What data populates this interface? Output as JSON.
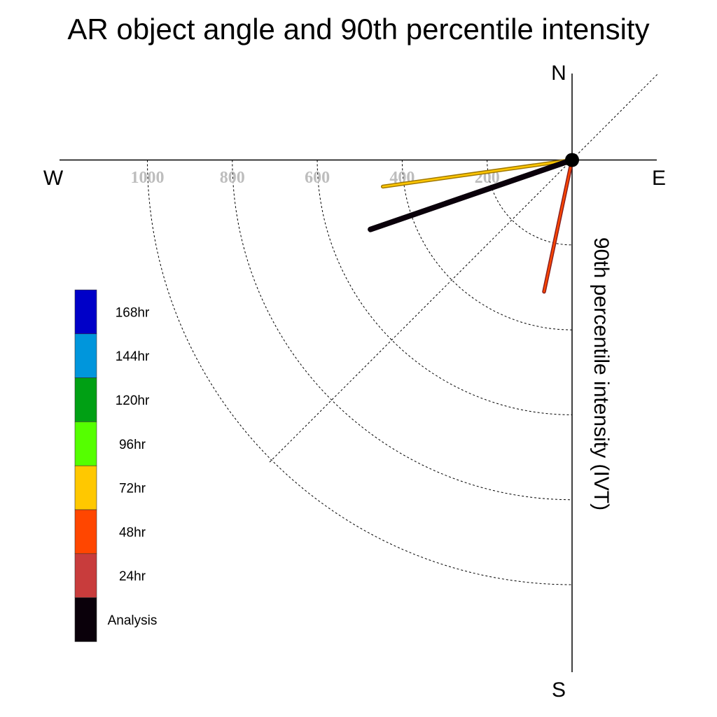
{
  "chart_data": {
    "type": "polar-vector",
    "title": "AR object angle and 90th percentile intensity",
    "ylabel": "90th percentile intensity (IVT)",
    "compass": {
      "north": "N",
      "south": "S",
      "east": "E",
      "west": "W"
    },
    "rings": [
      200,
      400,
      600,
      800,
      1000
    ],
    "ring_labels": [
      "1000",
      "800",
      "600",
      "400",
      "200"
    ],
    "rlim": [
      0,
      1000
    ],
    "quadrant": "south-west",
    "legend": {
      "placement": "left",
      "entries": [
        {
          "label": "168hr",
          "color": "#0000c8"
        },
        {
          "label": "144hr",
          "color": "#0096dc"
        },
        {
          "label": "120hr",
          "color": "#00a014"
        },
        {
          "label": "96hr",
          "color": "#55ff00"
        },
        {
          "label": "72hr",
          "color": "#ffc800"
        },
        {
          "label": "48hr",
          "color": "#ff4600"
        },
        {
          "label": "24hr",
          "color": "#c83c3c"
        },
        {
          "label": "Analysis",
          "color": "#0a000a"
        }
      ]
    },
    "series": [
      {
        "name": "72hr",
        "angle_deg_from_north": 262,
        "intensity": 450,
        "color": "#ffc800",
        "outline": "#a07800"
      },
      {
        "name": "Analysis",
        "angle_deg_from_north": 251,
        "intensity": 502,
        "color": "#0a000a"
      },
      {
        "name": "48hr",
        "angle_deg_from_north": 192,
        "intensity": 317,
        "color": "#ff4600",
        "outline": "#8a2020"
      }
    ]
  }
}
